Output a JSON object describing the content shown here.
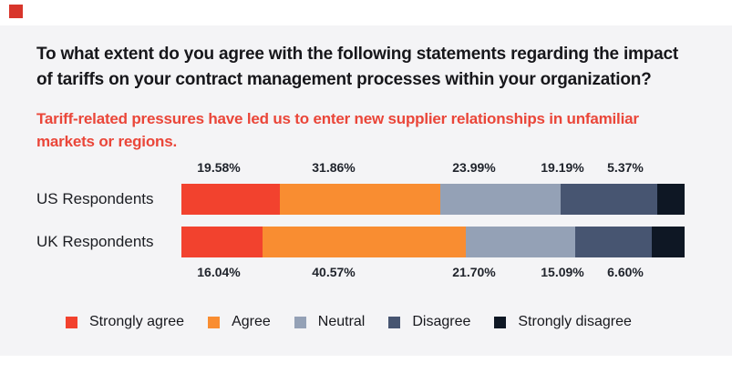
{
  "page": {
    "background": "#ffffff",
    "panel_background": "#f4f4f6"
  },
  "brand": {
    "mark_color": "#d8352b"
  },
  "header": {
    "question": "To what extent do you agree with the following statements regarding the impact\nof tariffs on your contract management processes within your organization?",
    "statement": "Tariff-related pressures have led us to enter new supplier relationships in unfamiliar\nmarkets or regions.",
    "statement_color": "#ea4639"
  },
  "chart_data": {
    "type": "bar",
    "orientation": "horizontal",
    "stacked": true,
    "xlim": [
      0,
      100
    ],
    "legend_position": "bottom",
    "title": "To what extent do you agree with the following statements regarding the impact of tariffs on your contract management processes within your organization?",
    "subtitle": "Tariff-related pressures have led us to enter new supplier relationships in unfamiliar markets or regions.",
    "categories": [
      "Strongly agree",
      "Agree",
      "Neutral",
      "Disagree",
      "Strongly disagree"
    ],
    "colors": [
      "#f2422e",
      "#f98d31",
      "#94a1b6",
      "#475571",
      "#0e1724"
    ],
    "series": [
      {
        "name": "US Respondents",
        "values": [
          19.58,
          31.86,
          23.99,
          19.19,
          5.37
        ],
        "labels": [
          "19.58%",
          "31.86%",
          "23.99%",
          "19.19%",
          "5.37%"
        ],
        "value_labels_position": "above"
      },
      {
        "name": "UK Respondents",
        "values": [
          16.04,
          40.57,
          21.7,
          15.09,
          6.6
        ],
        "labels": [
          "16.04%",
          "40.57%",
          "21.70%",
          "15.09%",
          "6.60%"
        ],
        "value_labels_position": "below"
      }
    ]
  }
}
